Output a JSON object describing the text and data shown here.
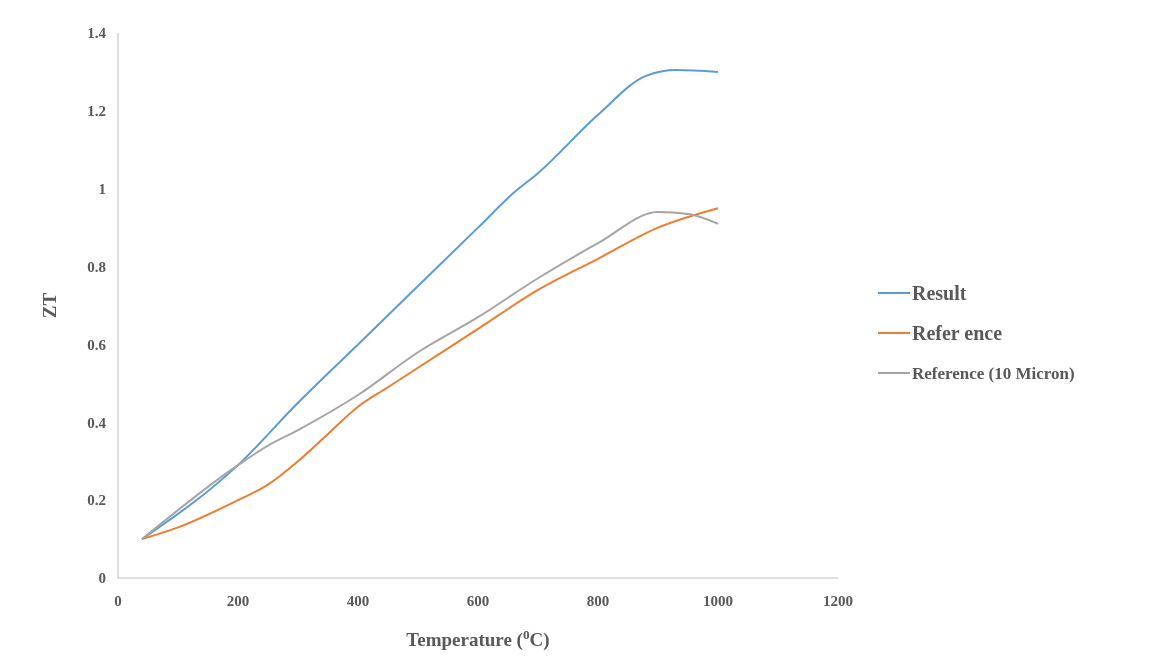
{
  "chart_data": {
    "type": "line",
    "xlabel": "Temperature ($^{0}$C)",
    "ylabel": "ZT",
    "xlim": [
      0,
      1200
    ],
    "xticks": [
      0,
      200,
      400,
      600,
      800,
      1000,
      1200
    ],
    "ylim": [
      0,
      1.4
    ],
    "yticks": [
      0,
      0.2,
      0.4,
      0.6,
      0.8,
      1,
      1.2,
      1.4
    ],
    "grid": false,
    "legend": "right",
    "marker": "none",
    "series": [
      {
        "name": "Result",
        "color": "#5b9bd5",
        "x": [
          40,
          200,
          300,
          400,
          500,
          600,
          660,
          700,
          800,
          880,
          930,
          1000
        ],
        "values": [
          0.1,
          0.29,
          0.45,
          0.6,
          0.75,
          0.9,
          0.99,
          1.04,
          1.19,
          1.29,
          1.305,
          1.3
        ]
      },
      {
        "name": "Refer ence",
        "color": "#ed7d31",
        "x": [
          40,
          100,
          200,
          250,
          300,
          350,
          400,
          450,
          500,
          600,
          700,
          800,
          900,
          1000
        ],
        "values": [
          0.1,
          0.13,
          0.2,
          0.24,
          0.3,
          0.37,
          0.44,
          0.49,
          0.54,
          0.64,
          0.74,
          0.82,
          0.9,
          0.95
        ]
      },
      {
        "name": "Reference (10 Micron)",
        "color": "#a5a5a5",
        "x": [
          40,
          200,
          250,
          300,
          400,
          500,
          600,
          700,
          800,
          900,
          950,
          1000
        ],
        "values": [
          0.1,
          0.29,
          0.34,
          0.38,
          0.47,
          0.58,
          0.67,
          0.77,
          0.86,
          0.94,
          0.935,
          0.91
        ]
      }
    ]
  }
}
